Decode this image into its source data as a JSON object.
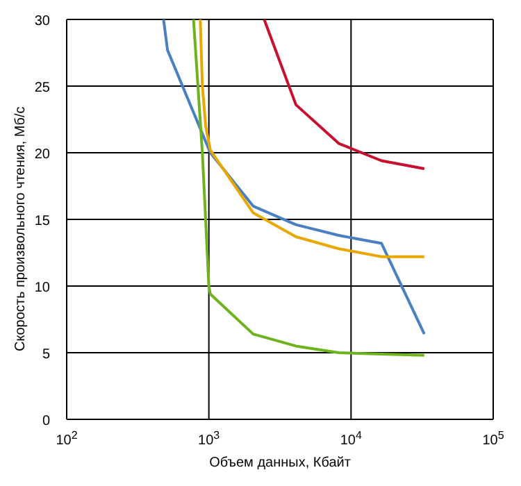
{
  "chart_data": {
    "type": "line",
    "xlabel": "Объем данных, Кбайт",
    "ylabel": "Скорость произвольного чтения, Мб/с",
    "log": "x",
    "grid": true,
    "marker": "none",
    "line_style": "solid",
    "xlim": [
      100,
      100000
    ],
    "xticks": [
      {
        "value": 100,
        "label": "10$^{2}$"
      },
      {
        "value": 1000,
        "label": "10$^{3}$"
      },
      {
        "value": 10000,
        "label": "10$^{4}$"
      },
      {
        "value": 100000,
        "label": "10$^{5}$"
      }
    ],
    "ylim": [
      0,
      30
    ],
    "yticks": [
      0,
      5,
      10,
      15,
      20,
      25,
      30
    ],
    "series": [
      {
        "color": "#4a7fc0",
        "x": [
          480,
          512,
          1024,
          2048,
          4096,
          8192,
          16384,
          32768
        ],
        "values": [
          30,
          27.7,
          20,
          16,
          14.6,
          13.8,
          13.2,
          6.4
        ]
      },
      {
        "color": "#e8a800",
        "x": [
          870,
          900,
          950,
          1024,
          2048,
          4096,
          8192,
          16384,
          32768
        ],
        "values": [
          30,
          25,
          22,
          20.2,
          15.5,
          13.7,
          12.8,
          12.2,
          12.2
        ]
      },
      {
        "color": "#6cb31e",
        "x": [
          780,
          900,
          1000,
          1024,
          2048,
          4096,
          8192,
          16384,
          32768
        ],
        "values": [
          30,
          20,
          10,
          9.4,
          6.4,
          5.5,
          5,
          4.9,
          4.8
        ]
      },
      {
        "color": "#c8102e",
        "x": [
          2450,
          4096,
          8192,
          16384,
          32768
        ],
        "values": [
          30,
          23.6,
          20.7,
          19.4,
          18.8
        ]
      }
    ]
  }
}
